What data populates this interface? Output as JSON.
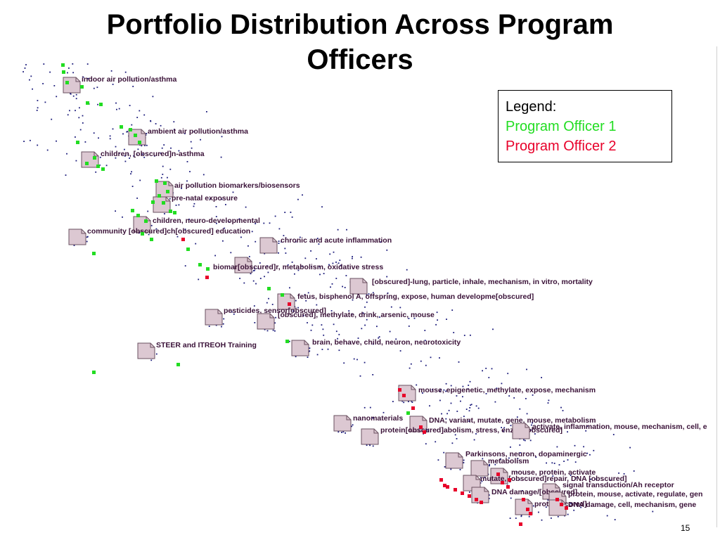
{
  "slide": {
    "title_line1": "Portfolio Distribution Across Program",
    "title_line2": "Officers",
    "page_number": "15"
  },
  "legend": {
    "heading": "Legend:",
    "items": [
      {
        "label": "Program Officer 1",
        "color": "#22dd22"
      },
      {
        "label": "Program Officer 2",
        "color": "#e8002a"
      }
    ]
  },
  "colors": {
    "node_fill": "#dcc8d2",
    "node_stroke": "#6a5060",
    "label": "#3a1238",
    "grant_dot": "#1a1a7a",
    "po1": "#22dd22",
    "po2": "#e8002a"
  },
  "topics": [
    "indoor air pollution/asthma",
    "ambient air pollution/asthma",
    "children, [obscured]n-asthma",
    "air pollution biomarkers/biosensors",
    "pre-natal exposure",
    "children, neuro-developmental",
    "community [obscured]ch[obscured] education",
    "chronic and acute inflammation",
    "biomar[obscured]r, metabolism, oxidative stress",
    "[obscured]-lung, particle, inhale, mechanism, in vitro, mortality",
    "fetus, bisphenol A, offspring, expose, human developme[obscured]",
    "pesticides, sensor[obscured]",
    "[obscured], methylate, drink, arsenic, mouse",
    "brain, behave, child, neuron, neurotoxicity",
    "STEER and ITREOH Training",
    "mouse, epigenetic, methylate, expose, mechanism",
    "nanomaterials",
    "DNA, variant, mutate, gene, mouse, metabolism",
    "protein[obscured]abolism, stress, enzym[obscured]",
    "activate, inflammation, mouse, mechanism, cell, e",
    "Parkinsons, neuron, dopaminergic",
    "metabolism",
    "mouse, protein, activate",
    "mutate, [obscured]repair, DNA [obscured]",
    "signal transduction/Ah receptor",
    "DNA damage/[obscured]",
    "protein, mouse, activate, regulate, gen",
    "prot[obscured]",
    "DNA damage, cell, mechanism, gene"
  ]
}
